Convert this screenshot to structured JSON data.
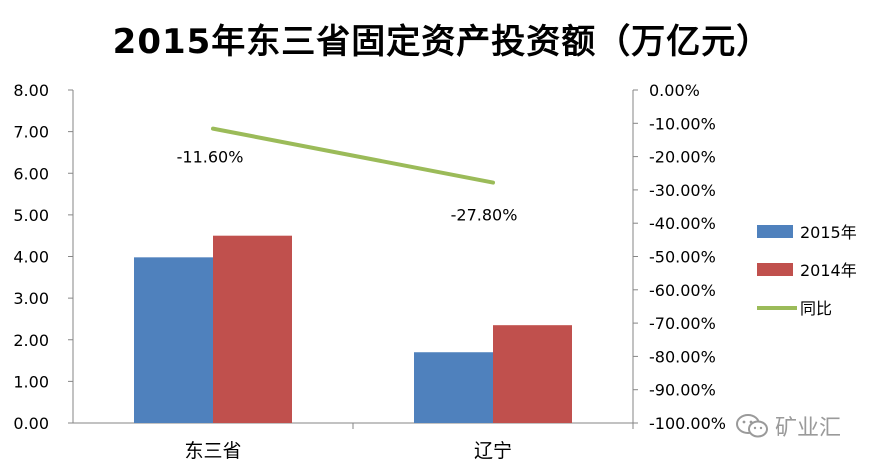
{
  "chart_data": {
    "type": "bar",
    "title": "2015年东三省固定资产投资额（万亿元）",
    "categories": [
      "东三省",
      "辽宁"
    ],
    "series": [
      {
        "name": "2015年",
        "type": "bar",
        "axis": "left",
        "color": "#4f81bd",
        "values": [
          3.98,
          1.7
        ]
      },
      {
        "name": "2014年",
        "type": "bar",
        "axis": "left",
        "color": "#c0504d",
        "values": [
          4.5,
          2.35
        ]
      },
      {
        "name": "同比",
        "type": "line",
        "axis": "right",
        "color": "#9bbb59",
        "values": [
          -11.6,
          -27.8
        ]
      }
    ],
    "data_labels": [
      "-11.60%",
      "-27.80%"
    ],
    "left_axis": {
      "min": 0,
      "max": 8,
      "step": 1,
      "tick_labels": [
        "0.00",
        "1.00",
        "2.00",
        "3.00",
        "4.00",
        "5.00",
        "6.00",
        "7.00",
        "8.00"
      ]
    },
    "right_axis": {
      "min": -100,
      "max": 0,
      "step": 10,
      "tick_labels": [
        "-100.00%",
        "-90.00%",
        "-80.00%",
        "-70.00%",
        "-60.00%",
        "-50.00%",
        "-40.00%",
        "-30.00%",
        "-20.00%",
        "-10.00%",
        "0.00%"
      ]
    },
    "legend": {
      "position": "right",
      "entries": [
        "2015年",
        "2014年",
        "同比"
      ]
    },
    "grid": false
  },
  "watermark": {
    "text": "矿业汇",
    "icon": "wechat-icon"
  }
}
